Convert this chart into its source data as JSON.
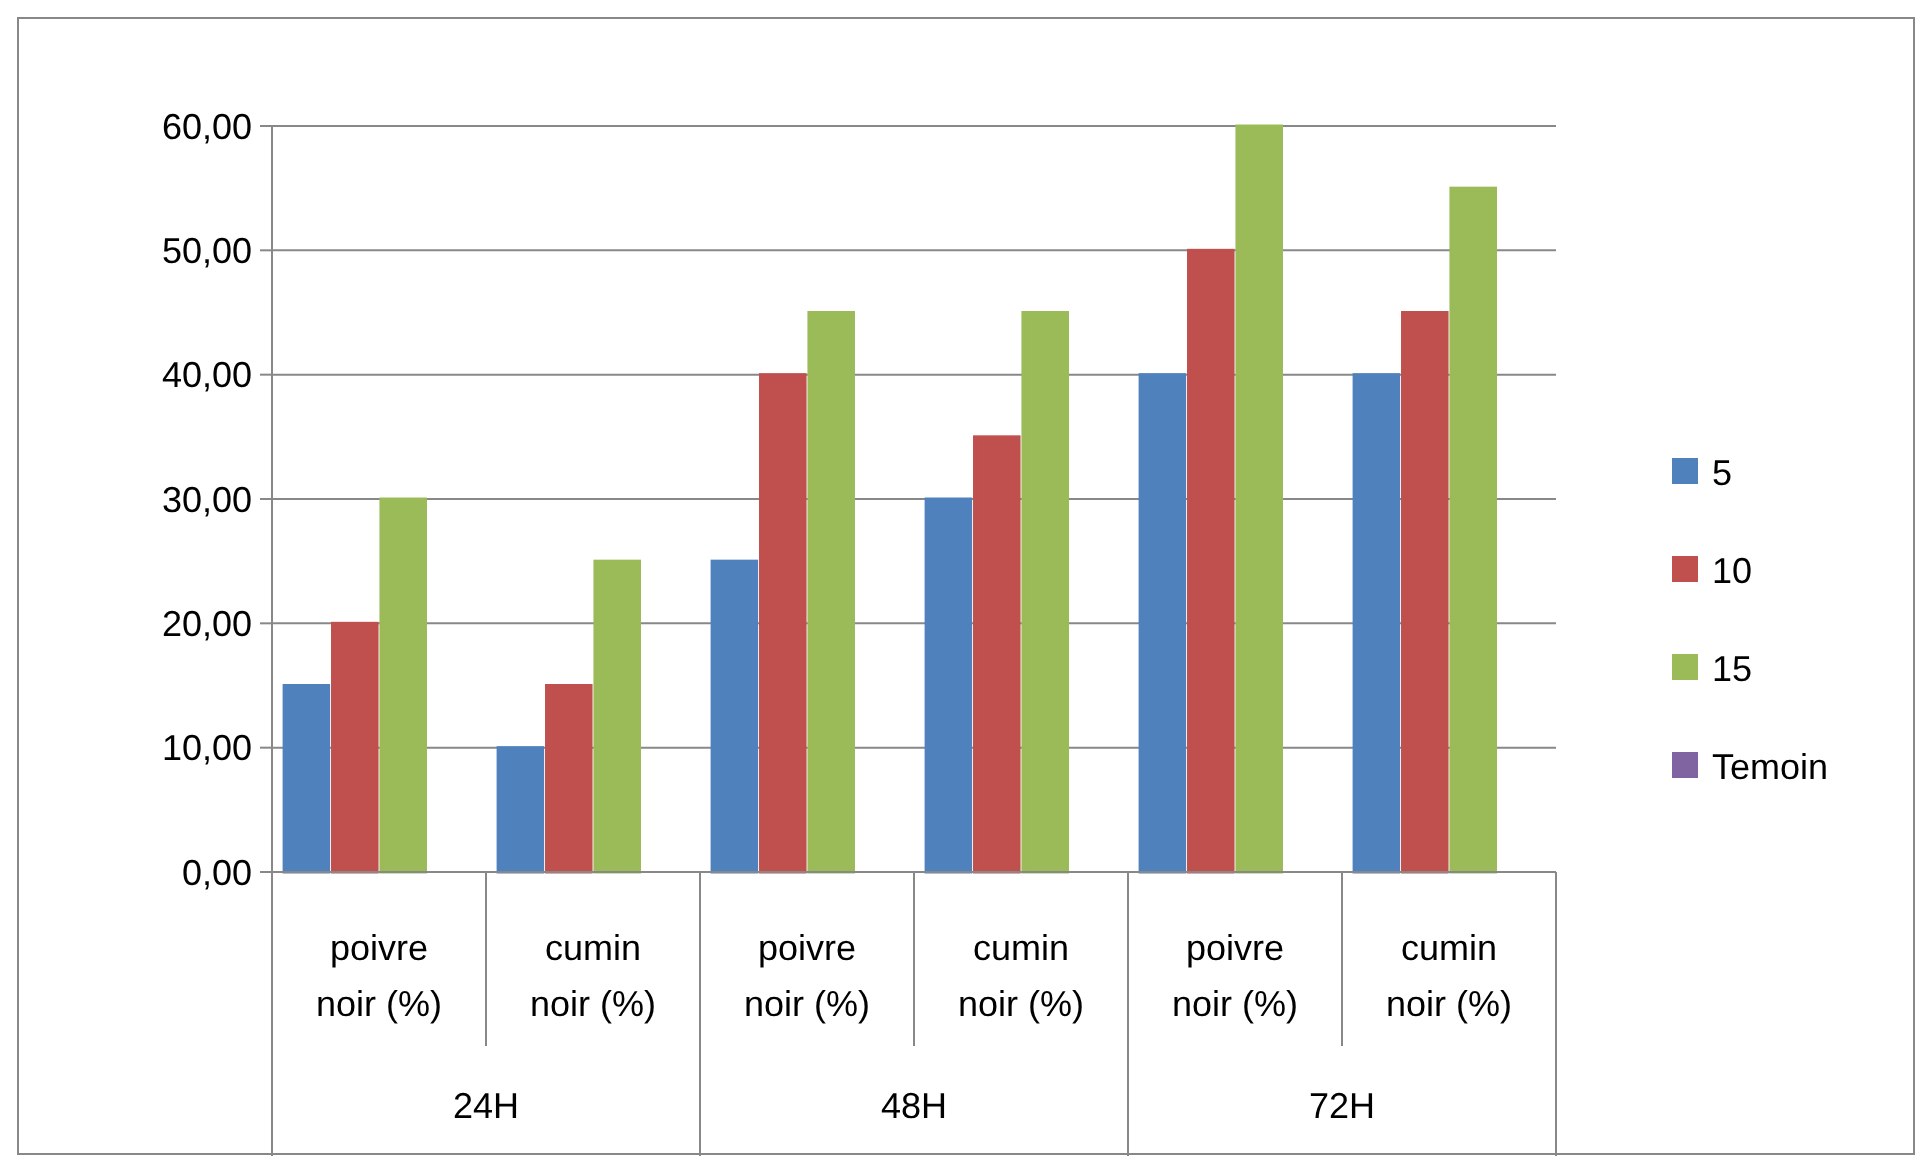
{
  "chart_data": {
    "type": "bar",
    "categories": [
      "poivre noir (%)",
      "cumin noir (%)",
      "poivre noir (%)",
      "cumin noir (%)",
      "poivre noir (%)",
      "cumin noir (%)"
    ],
    "annotations": [
      "24H",
      "48H",
      "72H"
    ],
    "series": [
      {
        "name": "5",
        "color": "#4f81bd",
        "values": [
          15,
          10,
          25,
          30,
          40,
          40
        ]
      },
      {
        "name": "10",
        "color": "#c0504d",
        "values": [
          20,
          15,
          40,
          35,
          50,
          45
        ]
      },
      {
        "name": "15",
        "color": "#9bbb59",
        "values": [
          30,
          25,
          45,
          45,
          60,
          55
        ]
      },
      {
        "name": "Temoin",
        "color": "#8064a2",
        "values": [
          0,
          0,
          0,
          0,
          0,
          0
        ]
      }
    ],
    "ylim": [
      0,
      60
    ],
    "yticks": [
      {
        "value": 0,
        "label": "0,00"
      },
      {
        "value": 10,
        "label": "10,00"
      },
      {
        "value": 20,
        "label": "20,00"
      },
      {
        "value": 30,
        "label": "30,00"
      },
      {
        "value": 40,
        "label": "40,00"
      },
      {
        "value": 50,
        "label": "50,00"
      },
      {
        "value": 60,
        "label": "60,00"
      }
    ],
    "grid": "y",
    "legend": "right"
  }
}
